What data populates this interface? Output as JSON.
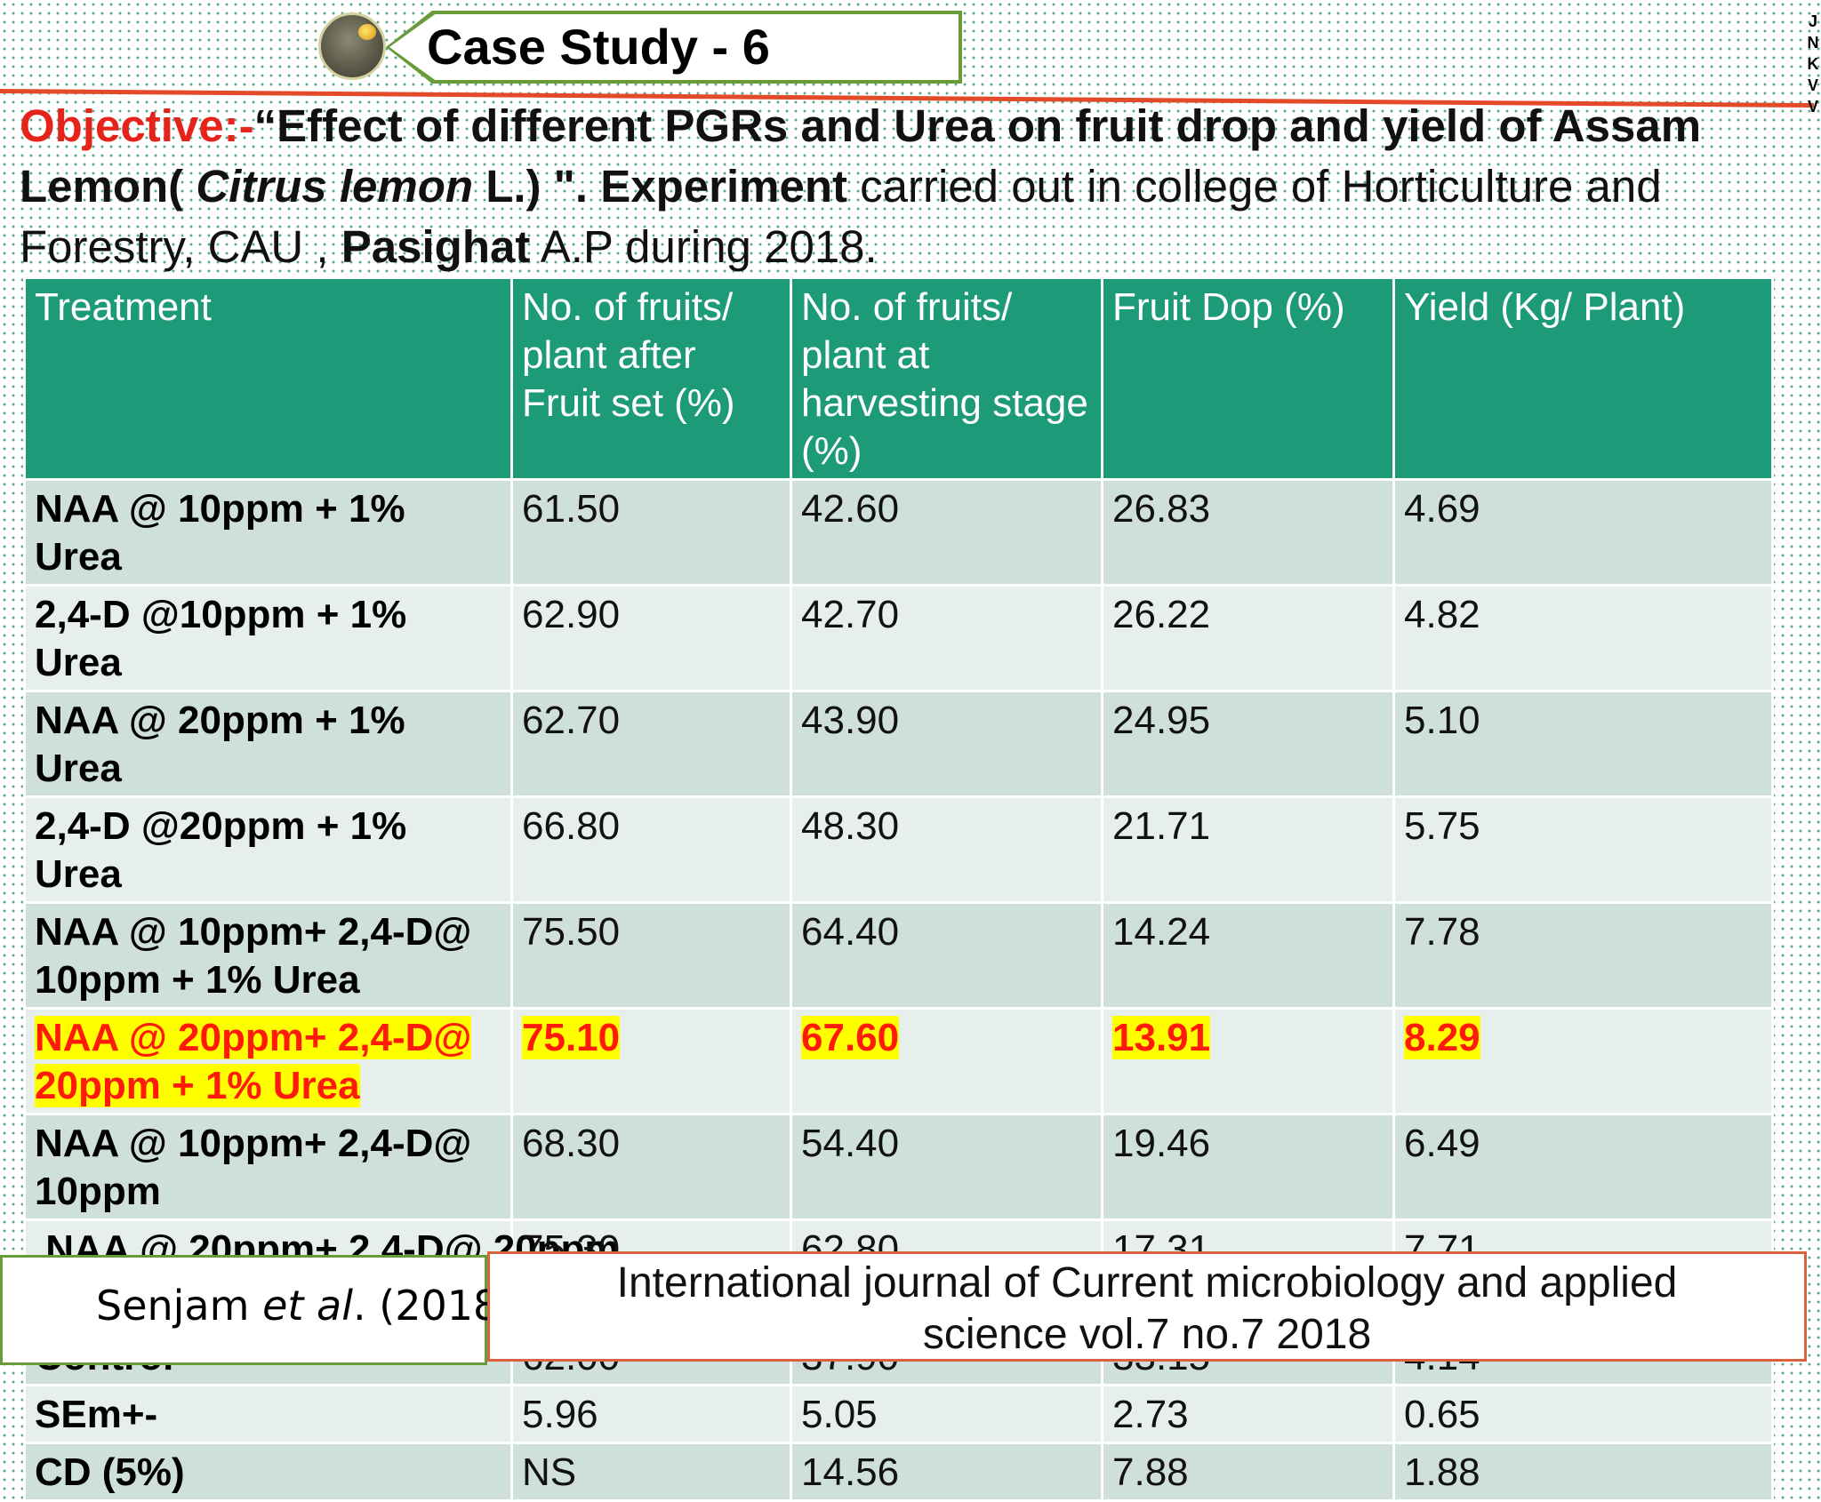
{
  "header": {
    "title": "Case Study - 6",
    "side_letters": [
      "J",
      "N",
      "K",
      "V",
      "V"
    ]
  },
  "objective": {
    "label": "Objective:-",
    "quote_text": "“Effect of different PGRs and Urea on fruit drop and yield of Assam Lemon( ",
    "species": "Citrus lemon",
    "species_after": " L.) \". ",
    "experiment_word": "Experiment",
    "experiment_text": " carried out in college of Horticulture and Forestry, CAU , ",
    "place": "Pasighat",
    "place_after": " A.P during 2018."
  },
  "table": {
    "headers": [
      "Treatment",
      " No. of fruits/ plant after Fruit set (%)",
      "No. of fruits/ plant at harvesting stage  (%)",
      "Fruit Dop (%)",
      "Yield (Kg/ Plant)"
    ],
    "rows": [
      {
        "treatment": "NAA @ 10ppm + 1% Urea",
        "after_set": "61.50",
        "harvest": "42.60",
        "drop": "26.83",
        "yield": "4.69"
      },
      {
        "treatment": "2,4-D @10ppm + 1% Urea",
        "after_set": "62.90",
        "harvest": "42.70",
        "drop": "26.22",
        "yield": "4.82"
      },
      {
        "treatment": "NAA @ 20ppm + 1% Urea",
        "after_set": "62.70",
        "harvest": "43.90",
        "drop": "24.95",
        "yield": "5.10"
      },
      {
        "treatment": "2,4-D @20ppm + 1% Urea",
        "after_set": "66.80",
        "harvest": "48.30",
        "drop": "21.71",
        "yield": "5.75"
      },
      {
        "treatment": "NAA @ 10ppm+ 2,4-D@ 10ppm + 1% Urea",
        "after_set": "75.50",
        "harvest": "64.40",
        "drop": "14.24",
        "yield": "7.78"
      },
      {
        "treatment": "NAA @ 20ppm+ 2,4-D@ 20ppm + 1% Urea",
        "after_set": "75.10",
        "harvest": "67.60",
        "drop": "13.91",
        "yield": "8.29"
      },
      {
        "treatment": "NAA @ 10ppm+ 2,4-D@ 10ppm",
        "after_set": "68.30",
        "harvest": "54.40",
        "drop": "19.46",
        "yield": "6.49"
      },
      {
        "treatment": " NAA @ 20ppm+ 2,4-D@ 20ppm",
        "after_set": "75.30",
        "harvest": "62.80",
        "drop": "17.31",
        "yield": "7.71"
      },
      {
        "treatment": "Control",
        "after_set": "62.00",
        "harvest": "37.90",
        "drop": "33.15",
        "yield": "4.14"
      },
      {
        "treatment": "SEm+-",
        "after_set": "5.96",
        "harvest": "5.05",
        "drop": "2.73",
        "yield": "0.65"
      },
      {
        "treatment": "CD (5%)",
        "after_set": "NS",
        "harvest": "14.56",
        "drop": "7.88",
        "yield": "1.88"
      }
    ]
  },
  "footer": {
    "author": "Senjam ",
    "etal": "et al",
    "year": ". (2018)",
    "journal_line1": "International journal of Current microbiology and applied",
    "journal_line2": "science vol.7 no.7 2018"
  },
  "colors": {
    "header_green": "#1d9b78",
    "highlight_yellow": "#ffff00",
    "highlight_red": "#ff1a0a",
    "accent_red": "#e5231b"
  }
}
